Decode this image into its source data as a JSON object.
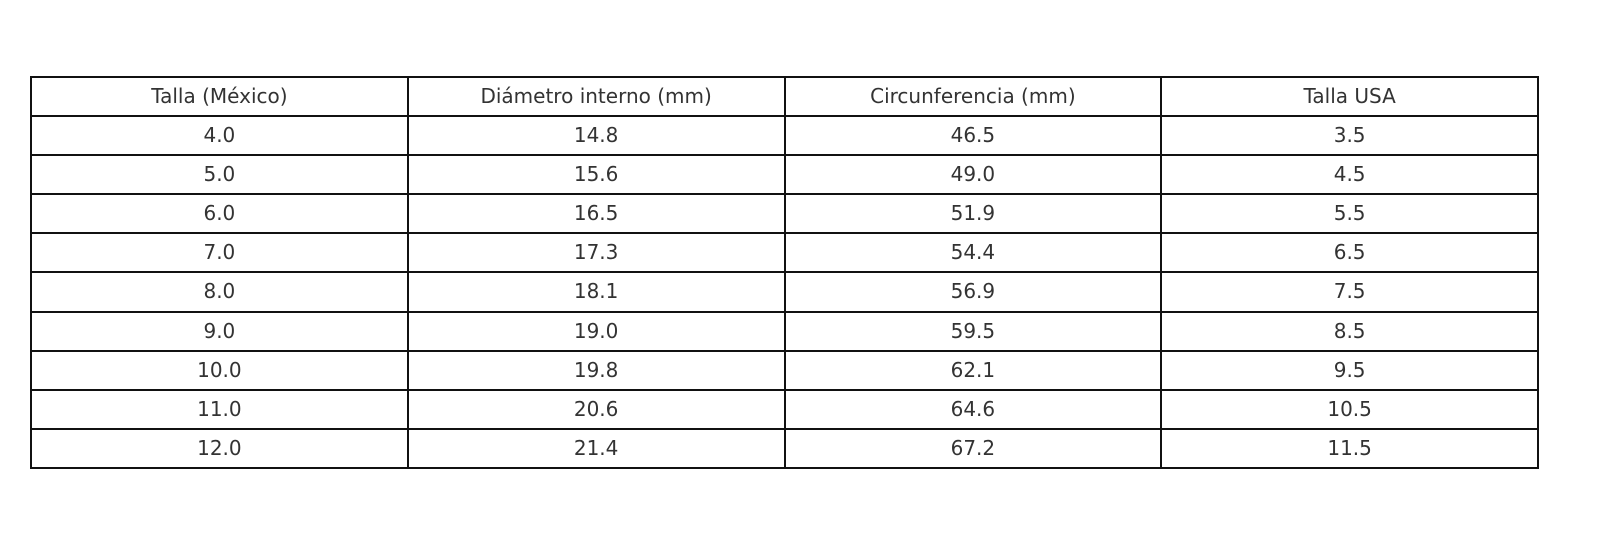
{
  "chart_data": {
    "type": "table",
    "columns": [
      "Talla (México)",
      "Diámetro interno (mm)",
      "Circunferencia (mm)",
      "Talla USA"
    ],
    "rows": [
      [
        "4.0",
        "14.8",
        "46.5",
        "3.5"
      ],
      [
        "5.0",
        "15.6",
        "49.0",
        "4.5"
      ],
      [
        "6.0",
        "16.5",
        "51.9",
        "5.5"
      ],
      [
        "7.0",
        "17.3",
        "54.4",
        "6.5"
      ],
      [
        "8.0",
        "18.1",
        "56.9",
        "7.5"
      ],
      [
        "9.0",
        "19.0",
        "59.5",
        "8.5"
      ],
      [
        "10.0",
        "19.8",
        "62.1",
        "9.5"
      ],
      [
        "11.0",
        "20.6",
        "64.6",
        "10.5"
      ],
      [
        "12.0",
        "21.4",
        "67.2",
        "11.5"
      ]
    ],
    "border_color": "#111111",
    "text_color": "#333333"
  }
}
